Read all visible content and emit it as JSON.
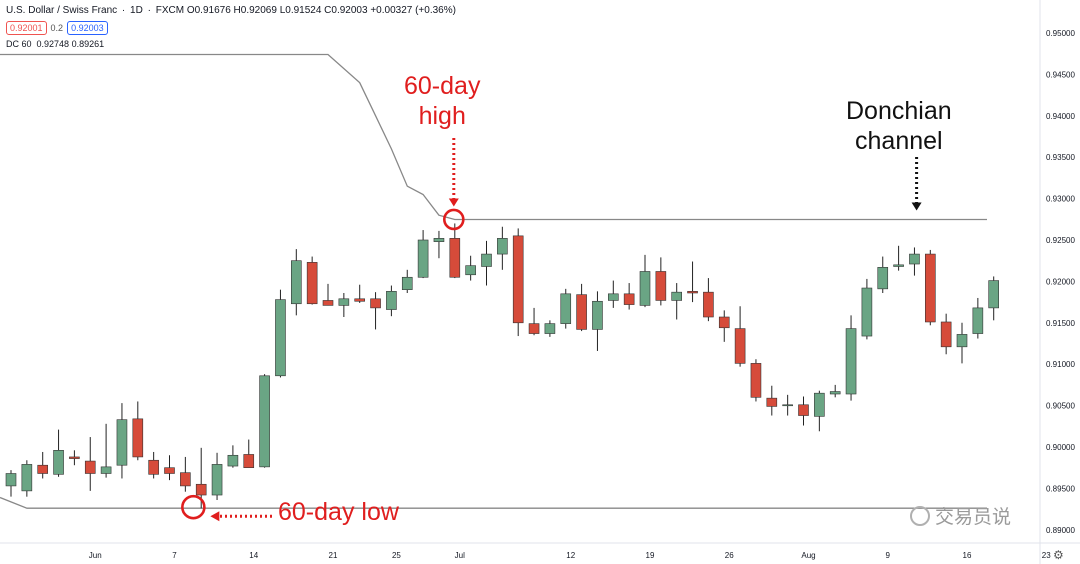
{
  "header": {
    "symbol": "U.S. Dollar / Swiss Franc",
    "interval": "1D",
    "exchange": "FXCM",
    "ohlc": "O0.91676 H0.92069 L0.91524 C0.92003 +0.00327 (+0.36%)",
    "bid": "0.92001",
    "spread": "0.2",
    "ask": "0.92003",
    "indicator_name": "DC 60",
    "indicator_values": "0.92748 0.89261"
  },
  "colors": {
    "bull": "#6aa584",
    "bear": "#d64b3a",
    "wick": "#222222",
    "channel": "#888888",
    "annotation_red": "#e01e1e",
    "annotation_black": "#111111",
    "axis_text": "#131722"
  },
  "chart_data": {
    "type": "candlestick",
    "title": "U.S. Dollar / Swiss Franc · 1D · FXCM",
    "ylim": [
      0.8875,
      0.9525
    ],
    "y_ticks": [
      "0.95000",
      "0.94500",
      "0.94000",
      "0.93500",
      "0.93000",
      "0.92500",
      "0.92000",
      "0.91500",
      "0.91000",
      "0.90500",
      "0.90000",
      "0.89500",
      "0.89000"
    ],
    "x_ticks": [
      "Jun",
      "7",
      "14",
      "21",
      "25",
      "Jul",
      "12",
      "19",
      "26",
      "Aug",
      "9",
      "16",
      "23"
    ],
    "candles": [
      {
        "o": 0.8953,
        "h": 0.8972,
        "l": 0.894,
        "c": 0.8968
      },
      {
        "o": 0.8947,
        "h": 0.8984,
        "l": 0.894,
        "c": 0.8979
      },
      {
        "o": 0.8978,
        "h": 0.8994,
        "l": 0.8962,
        "c": 0.8968
      },
      {
        "o": 0.8967,
        "h": 0.9021,
        "l": 0.8964,
        "c": 0.8996
      },
      {
        "o": 0.8988,
        "h": 0.8996,
        "l": 0.8978,
        "c": 0.8986
      },
      {
        "o": 0.8983,
        "h": 0.9012,
        "l": 0.8947,
        "c": 0.8968
      },
      {
        "o": 0.8968,
        "h": 0.9028,
        "l": 0.8963,
        "c": 0.8976
      },
      {
        "o": 0.8978,
        "h": 0.9053,
        "l": 0.8962,
        "c": 0.9033
      },
      {
        "o": 0.9034,
        "h": 0.9055,
        "l": 0.8984,
        "c": 0.8988
      },
      {
        "o": 0.8984,
        "h": 0.8994,
        "l": 0.8962,
        "c": 0.8967
      },
      {
        "o": 0.8975,
        "h": 0.899,
        "l": 0.896,
        "c": 0.8968
      },
      {
        "o": 0.8969,
        "h": 0.8988,
        "l": 0.8946,
        "c": 0.8953
      },
      {
        "o": 0.8955,
        "h": 0.8999,
        "l": 0.8926,
        "c": 0.8942
      },
      {
        "o": 0.8942,
        "h": 0.8993,
        "l": 0.8936,
        "c": 0.8979
      },
      {
        "o": 0.8977,
        "h": 0.9002,
        "l": 0.8975,
        "c": 0.899
      },
      {
        "o": 0.8991,
        "h": 0.9009,
        "l": 0.8975,
        "c": 0.8975
      },
      {
        "o": 0.8976,
        "h": 0.9088,
        "l": 0.8975,
        "c": 0.9086
      },
      {
        "o": 0.9086,
        "h": 0.919,
        "l": 0.9084,
        "c": 0.9178
      },
      {
        "o": 0.9173,
        "h": 0.9239,
        "l": 0.9159,
        "c": 0.9225
      },
      {
        "o": 0.9223,
        "h": 0.923,
        "l": 0.9172,
        "c": 0.9173
      },
      {
        "o": 0.9177,
        "h": 0.9197,
        "l": 0.9171,
        "c": 0.9171
      },
      {
        "o": 0.9171,
        "h": 0.9186,
        "l": 0.9157,
        "c": 0.9179
      },
      {
        "o": 0.9179,
        "h": 0.9196,
        "l": 0.9174,
        "c": 0.9176
      },
      {
        "o": 0.9179,
        "h": 0.9187,
        "l": 0.9142,
        "c": 0.9168
      },
      {
        "o": 0.9166,
        "h": 0.9195,
        "l": 0.9158,
        "c": 0.9188
      },
      {
        "o": 0.919,
        "h": 0.9214,
        "l": 0.9186,
        "c": 0.9205
      },
      {
        "o": 0.9205,
        "h": 0.9262,
        "l": 0.9204,
        "c": 0.925
      },
      {
        "o": 0.9248,
        "h": 0.9261,
        "l": 0.9228,
        "c": 0.9252
      },
      {
        "o": 0.9252,
        "h": 0.927,
        "l": 0.9204,
        "c": 0.9205
      },
      {
        "o": 0.9208,
        "h": 0.9231,
        "l": 0.9201,
        "c": 0.9219
      },
      {
        "o": 0.9218,
        "h": 0.9249,
        "l": 0.9195,
        "c": 0.9233
      },
      {
        "o": 0.9233,
        "h": 0.9266,
        "l": 0.9214,
        "c": 0.9252
      },
      {
        "o": 0.9255,
        "h": 0.9264,
        "l": 0.9134,
        "c": 0.915
      },
      {
        "o": 0.9149,
        "h": 0.9168,
        "l": 0.9135,
        "c": 0.9137
      },
      {
        "o": 0.9137,
        "h": 0.9153,
        "l": 0.9133,
        "c": 0.9149
      },
      {
        "o": 0.9149,
        "h": 0.9191,
        "l": 0.9143,
        "c": 0.9185
      },
      {
        "o": 0.9184,
        "h": 0.9197,
        "l": 0.914,
        "c": 0.9142
      },
      {
        "o": 0.9142,
        "h": 0.9188,
        "l": 0.9116,
        "c": 0.9176
      },
      {
        "o": 0.9177,
        "h": 0.9201,
        "l": 0.9168,
        "c": 0.9185
      },
      {
        "o": 0.9185,
        "h": 0.9198,
        "l": 0.9166,
        "c": 0.9172
      },
      {
        "o": 0.9171,
        "h": 0.9232,
        "l": 0.9169,
        "c": 0.9212
      },
      {
        "o": 0.9212,
        "h": 0.9229,
        "l": 0.9171,
        "c": 0.9177
      },
      {
        "o": 0.9177,
        "h": 0.9198,
        "l": 0.9154,
        "c": 0.9187
      },
      {
        "o": 0.9188,
        "h": 0.9224,
        "l": 0.9175,
        "c": 0.9186
      },
      {
        "o": 0.9187,
        "h": 0.9204,
        "l": 0.9152,
        "c": 0.9157
      },
      {
        "o": 0.9157,
        "h": 0.9165,
        "l": 0.9127,
        "c": 0.9144
      },
      {
        "o": 0.9143,
        "h": 0.917,
        "l": 0.9097,
        "c": 0.9101
      },
      {
        "o": 0.9101,
        "h": 0.9106,
        "l": 0.9055,
        "c": 0.906
      },
      {
        "o": 0.9059,
        "h": 0.9074,
        "l": 0.9038,
        "c": 0.9049
      },
      {
        "o": 0.9051,
        "h": 0.9063,
        "l": 0.9038,
        "c": 0.9051
      },
      {
        "o": 0.9051,
        "h": 0.9061,
        "l": 0.9026,
        "c": 0.9038
      },
      {
        "o": 0.9037,
        "h": 0.9068,
        "l": 0.9019,
        "c": 0.9065
      },
      {
        "o": 0.9064,
        "h": 0.9075,
        "l": 0.906,
        "c": 0.9067
      },
      {
        "o": 0.9064,
        "h": 0.9159,
        "l": 0.9056,
        "c": 0.9143
      },
      {
        "o": 0.9134,
        "h": 0.9203,
        "l": 0.913,
        "c": 0.9192
      },
      {
        "o": 0.9191,
        "h": 0.923,
        "l": 0.9186,
        "c": 0.9217
      },
      {
        "o": 0.9218,
        "h": 0.9243,
        "l": 0.9213,
        "c": 0.922
      },
      {
        "o": 0.9221,
        "h": 0.9241,
        "l": 0.9207,
        "c": 0.9233
      },
      {
        "o": 0.9233,
        "h": 0.9238,
        "l": 0.9147,
        "c": 0.9151
      },
      {
        "o": 0.9151,
        "h": 0.9161,
        "l": 0.9112,
        "c": 0.9121
      },
      {
        "o": 0.9121,
        "h": 0.915,
        "l": 0.9101,
        "c": 0.9136
      },
      {
        "o": 0.9137,
        "h": 0.918,
        "l": 0.9131,
        "c": 0.9168
      },
      {
        "o": 0.9168,
        "h": 0.9206,
        "l": 0.9153,
        "c": 0.9201
      }
    ],
    "channel_upper": [
      {
        "i": 0,
        "v": 0.9474
      },
      {
        "i": 20,
        "v": 0.9474
      },
      {
        "i": 22,
        "v": 0.944
      },
      {
        "i": 23,
        "v": 0.94
      },
      {
        "i": 24,
        "v": 0.936
      },
      {
        "i": 25,
        "v": 0.9315
      },
      {
        "i": 26,
        "v": 0.9305
      },
      {
        "i": 27,
        "v": 0.928
      },
      {
        "i": 28,
        "v": 0.92748
      },
      {
        "i": 62,
        "v": 0.92748
      }
    ],
    "channel_lower": [
      {
        "i": 0,
        "v": 0.8939
      },
      {
        "i": 1,
        "v": 0.89261
      },
      {
        "i": 62,
        "v": 0.89261
      }
    ],
    "annotations": [
      {
        "text_lines": [
          "60-day",
          "high"
        ],
        "candle": 28,
        "price": 0.92748
      },
      {
        "text_lines": [
          "Donchian",
          "channel"
        ],
        "candle": 56,
        "price": 0.92748
      },
      {
        "text_lines": [
          "60-day low"
        ],
        "candle": 11,
        "price": 0.89261
      }
    ]
  },
  "watermark": {
    "text": "交易员说"
  }
}
